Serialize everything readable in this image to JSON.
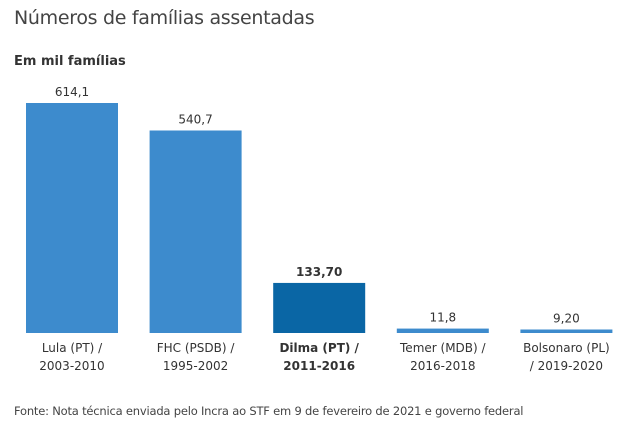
{
  "chart_data": {
    "type": "bar",
    "title": "Números de famílias assentadas",
    "subtitle": "Em mil famílias",
    "categories": [
      [
        "Lula (PT) /",
        "2003-2010"
      ],
      [
        "FHC (PSDB) /",
        "1995-2002"
      ],
      [
        "Dilma (PT) /",
        "2011-2016"
      ],
      [
        "Temer (MDB) /",
        "2016-2018"
      ],
      [
        "Bolsonaro (PL)",
        "/ 2019-2020"
      ]
    ],
    "values": [
      614.1,
      540.7,
      133.7,
      11.8,
      9.2
    ],
    "data_labels": [
      "614,1",
      "540,7",
      "133,70",
      "11,8",
      "9,20"
    ],
    "highlighted": [
      false,
      false,
      true,
      false,
      false
    ],
    "colors": {
      "default": "#3d8bcd",
      "highlight": "#0a66a5"
    },
    "ylim": [
      0,
      614.1
    ],
    "grid": false,
    "source": "Fonte: Nota técnica enviada pelo Incra ao STF em 9 de fevereiro de 2021 e governo federal"
  }
}
